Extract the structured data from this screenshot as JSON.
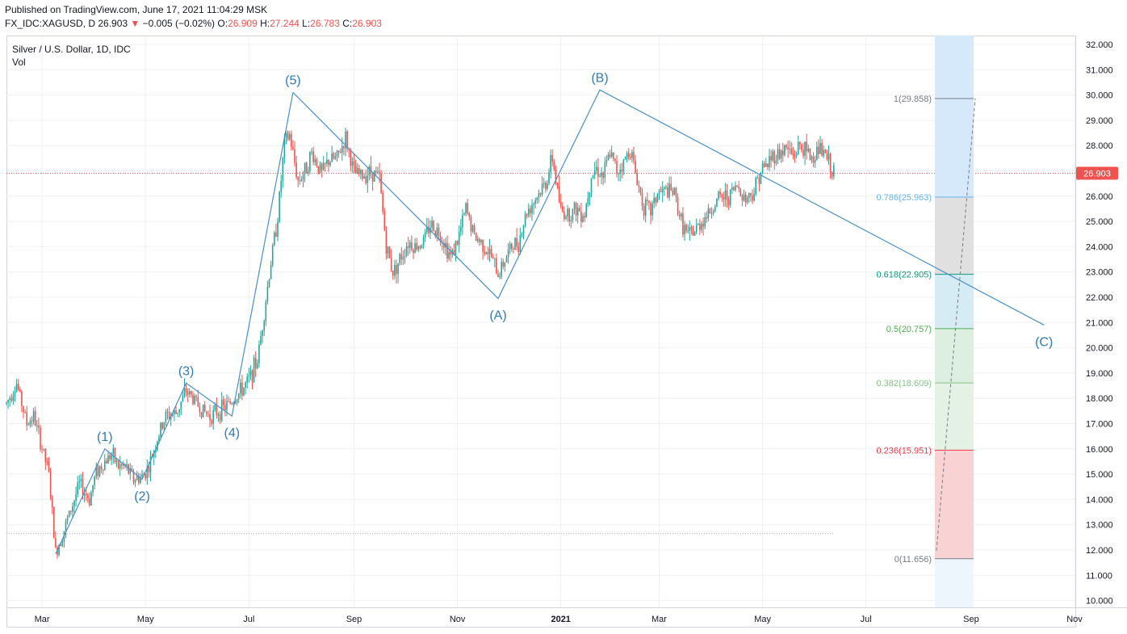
{
  "header": {
    "published": "Published on TradingView.com, June 17, 2021 11:04:29 MSK",
    "symbol": "FX_IDC:XAGUSD, D",
    "last": "26.903",
    "change_arrow": "▼",
    "change": "−0.005 (−0.02%)",
    "o_label": "O:",
    "o_value": "26.909",
    "h_label": "H:",
    "h_value": "27.244",
    "l_label": "L:",
    "l_value": "26.783",
    "c_label": "C:",
    "c_value": "26.903"
  },
  "pane": {
    "title": "Silver / U.S. Dollar, 1D, IDC",
    "volume_label": "Vol"
  },
  "colors": {
    "up": "#26a69a",
    "down": "#ef5350",
    "wave": "#4a8fc9",
    "grid": "#eef0f3",
    "last_price_tag": "#ef5350"
  },
  "chart_data": {
    "type": "candlestick",
    "symbol": "FX_IDC:XAGUSD",
    "y_ticks": [
      "32.000",
      "31.000",
      "30.000",
      "29.000",
      "28.000",
      "27.000",
      "26.000",
      "25.000",
      "24.000",
      "23.000",
      "22.000",
      "21.000",
      "20.000",
      "19.000",
      "18.000",
      "17.000",
      "16.000",
      "15.000",
      "14.000",
      "13.000",
      "12.000",
      "11.000",
      "10.000"
    ],
    "ylim": [
      10,
      32
    ],
    "x_ticks": [
      {
        "label": "Mar",
        "t": 21
      },
      {
        "label": "May",
        "t": 82
      },
      {
        "label": "Jul",
        "t": 143
      },
      {
        "label": "Sep",
        "t": 205
      },
      {
        "label": "Nov",
        "t": 266
      },
      {
        "label": "2021",
        "t": 327,
        "bold": true
      },
      {
        "label": "Mar",
        "t": 385
      },
      {
        "label": "May",
        "t": 446
      },
      {
        "label": "Jul",
        "t": 507
      },
      {
        "label": "Sep",
        "t": 569
      },
      {
        "label": "Nov",
        "t": 630
      }
    ],
    "last_price": "26.903",
    "price_path": [
      [
        0,
        17.8
      ],
      [
        6,
        18.6
      ],
      [
        12,
        17.0
      ],
      [
        16,
        17.3
      ],
      [
        20,
        16.3
      ],
      [
        25,
        15.0
      ],
      [
        29,
        11.9
      ],
      [
        33,
        12.6
      ],
      [
        38,
        13.6
      ],
      [
        43,
        14.6
      ],
      [
        49,
        14.0
      ],
      [
        53,
        15.1
      ],
      [
        58,
        15.5
      ],
      [
        62,
        15.8
      ],
      [
        66,
        15.3
      ],
      [
        70,
        15.3
      ],
      [
        75,
        14.8
      ],
      [
        80,
        14.9
      ],
      [
        84,
        15.3
      ],
      [
        89,
        16.4
      ],
      [
        94,
        17.3
      ],
      [
        100,
        17.4
      ],
      [
        106,
        18.3
      ],
      [
        110,
        18.0
      ],
      [
        116,
        17.5
      ],
      [
        120,
        17.3
      ],
      [
        125,
        17.5
      ],
      [
        130,
        17.7
      ],
      [
        136,
        18.1
      ],
      [
        142,
        18.6
      ],
      [
        148,
        19.5
      ],
      [
        152,
        21.4
      ],
      [
        156,
        23.4
      ],
      [
        160,
        25.2
      ],
      [
        164,
        28.1
      ],
      [
        167,
        28.4
      ],
      [
        172,
        26.6
      ],
      [
        176,
        27.0
      ],
      [
        180,
        27.7
      ],
      [
        186,
        26.9
      ],
      [
        190,
        27.4
      ],
      [
        195,
        27.5
      ],
      [
        200,
        28.3
      ],
      [
        205,
        26.9
      ],
      [
        210,
        26.8
      ],
      [
        215,
        27.0
      ],
      [
        220,
        26.7
      ],
      [
        224,
        24.0
      ],
      [
        228,
        23.0
      ],
      [
        232,
        23.5
      ],
      [
        237,
        24.2
      ],
      [
        241,
        24.0
      ],
      [
        246,
        24.2
      ],
      [
        250,
        24.9
      ],
      [
        256,
        24.5
      ],
      [
        262,
        23.6
      ],
      [
        266,
        24.2
      ],
      [
        271,
        25.5
      ],
      [
        276,
        24.4
      ],
      [
        281,
        24.1
      ],
      [
        286,
        23.6
      ],
      [
        290,
        22.9
      ],
      [
        294,
        23.5
      ],
      [
        298,
        24.0
      ],
      [
        302,
        24.2
      ],
      [
        307,
        25.4
      ],
      [
        313,
        26.0
      ],
      [
        318,
        26.5
      ],
      [
        322,
        27.5
      ],
      [
        327,
        25.4
      ],
      [
        332,
        25.3
      ],
      [
        336,
        25.5
      ],
      [
        341,
        25.3
      ],
      [
        345,
        26.9
      ],
      [
        348,
        27.1
      ],
      [
        352,
        26.8
      ],
      [
        356,
        27.7
      ],
      [
        360,
        27.0
      ],
      [
        364,
        27.3
      ],
      [
        368,
        27.9
      ],
      [
        372,
        26.6
      ],
      [
        376,
        25.6
      ],
      [
        380,
        25.4
      ],
      [
        384,
        26.1
      ],
      [
        389,
        26.2
      ],
      [
        394,
        26.1
      ],
      [
        398,
        25.0
      ],
      [
        402,
        24.4
      ],
      [
        406,
        24.6
      ],
      [
        410,
        25.0
      ],
      [
        415,
        25.4
      ],
      [
        420,
        25.9
      ],
      [
        426,
        26.0
      ],
      [
        431,
        26.4
      ],
      [
        436,
        25.9
      ],
      [
        441,
        26.2
      ],
      [
        444,
        26.9
      ],
      [
        448,
        27.2
      ],
      [
        452,
        27.6
      ],
      [
        456,
        27.7
      ],
      [
        460,
        27.9
      ],
      [
        464,
        27.6
      ],
      [
        468,
        28.0
      ],
      [
        472,
        27.7
      ],
      [
        476,
        27.5
      ],
      [
        479,
        27.9
      ],
      [
        483,
        27.6
      ],
      [
        488,
        26.9
      ]
    ],
    "annotations": {
      "elliott_waves": [
        {
          "label": "(1)",
          "t": 58,
          "price": 16.0
        },
        {
          "label": "(2)",
          "t": 80,
          "price": 14.8
        },
        {
          "label": "(3)",
          "t": 106,
          "price": 18.6
        },
        {
          "label": "(4)",
          "t": 133,
          "price": 17.3
        },
        {
          "label": "(5)",
          "t": 169,
          "price": 30.1
        },
        {
          "label": "(A)",
          "t": 290,
          "price": 21.95
        },
        {
          "label": "(B)",
          "t": 350,
          "price": 30.2
        },
        {
          "label": "(C)",
          "t": 612,
          "price": 20.9
        }
      ],
      "fib_retracement": {
        "levels": [
          {
            "ratio": "1",
            "value": "29.858",
            "color": "#787b86"
          },
          {
            "ratio": "0.786",
            "value": "25.963",
            "color": "#64b5f6"
          },
          {
            "ratio": "0.618",
            "value": "22.905",
            "color": "#089981"
          },
          {
            "ratio": "0.5",
            "value": "20.757",
            "color": "#4caf50"
          },
          {
            "ratio": "0.382",
            "value": "18.609",
            "color": "#81c784"
          },
          {
            "ratio": "0.236",
            "value": "15.951",
            "color": "#f23645"
          },
          {
            "ratio": "0",
            "value": "11.656",
            "color": "#787b86"
          }
        ]
      }
    }
  }
}
